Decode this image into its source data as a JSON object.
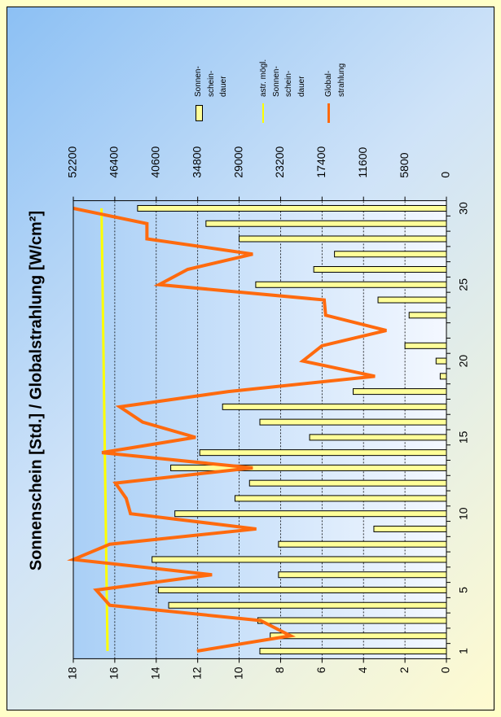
{
  "chart_data": {
    "type": "bar",
    "title": "Sonnenschein [Std.] / Globalstrahlung [W/cm²]",
    "categories": [
      1,
      null,
      null,
      null,
      5,
      null,
      null,
      null,
      null,
      10,
      null,
      null,
      null,
      null,
      15,
      null,
      null,
      null,
      null,
      20,
      null,
      null,
      null,
      null,
      25,
      null,
      null,
      null,
      null,
      30
    ],
    "series": [
      {
        "name": "Sonnen-\nschein-\ndauer",
        "type": "bar",
        "color": "#ffff99",
        "values": [
          9.0,
          8.5,
          9.1,
          13.4,
          13.9,
          8.1,
          14.2,
          8.1,
          3.5,
          13.1,
          10.2,
          9.5,
          13.3,
          11.9,
          6.6,
          9.0,
          10.8,
          4.5,
          0.3,
          0.5,
          2.0,
          0,
          1.8,
          3.3,
          9.2,
          6.4,
          5.4,
          10.0,
          11.6,
          14.9
        ]
      },
      {
        "name": "astr. mögl.\nSonnen-\nschein-\ndauer",
        "type": "line",
        "color": "#ffff00",
        "values": [
          16.35,
          16.36,
          16.37,
          16.38,
          16.39,
          16.4,
          16.41,
          16.42,
          16.43,
          16.44,
          16.45,
          16.46,
          16.47,
          16.48,
          16.49,
          16.5,
          16.51,
          16.52,
          16.53,
          16.54,
          16.55,
          16.56,
          16.57,
          16.58,
          16.59,
          16.6,
          16.61,
          16.62,
          16.63,
          16.64
        ]
      },
      {
        "name": "Global-\nstrahlung",
        "type": "line",
        "color": "#ff6a0e",
        "axis": "y2",
        "values": [
          34900,
          21800,
          26000,
          47100,
          49000,
          32800,
          52200,
          47100,
          26600,
          44200,
          44800,
          46300,
          27100,
          48200,
          35100,
          42500,
          45700,
          30500,
          10000,
          20100,
          17400,
          8400,
          16900,
          17100,
          40200,
          36200,
          27100,
          41900,
          41900,
          52200
        ]
      }
    ],
    "ylim": [
      0,
      18
    ],
    "yticks": [
      0,
      2,
      4,
      6,
      8,
      10,
      12,
      14,
      16,
      18
    ],
    "y2lim": [
      0,
      52200
    ],
    "y2ticks": [
      0,
      5800,
      11600,
      17400,
      23200,
      29000,
      34800,
      40600,
      46400,
      52200
    ],
    "grid": true
  }
}
